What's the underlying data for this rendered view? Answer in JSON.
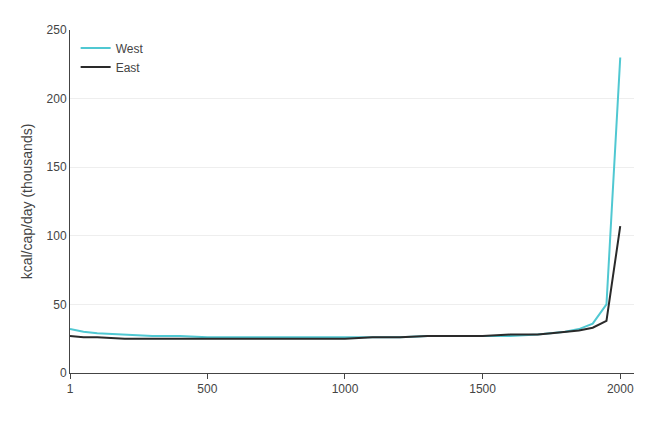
{
  "chart_data": {
    "type": "line",
    "ylabel": "kcal/cap/day (thousands)",
    "x": [
      1,
      50,
      100,
      200,
      300,
      400,
      500,
      600,
      700,
      800,
      900,
      1000,
      1100,
      1200,
      1300,
      1400,
      1500,
      1600,
      1700,
      1750,
      1800,
      1850,
      1900,
      1950,
      2000
    ],
    "series": [
      {
        "name": "West",
        "color": "#50c8d2",
        "values": [
          32,
          30,
          29,
          28,
          27,
          27,
          26,
          26,
          26,
          26,
          26,
          26,
          26,
          26,
          27,
          27,
          27,
          27,
          28,
          29,
          30,
          32,
          36,
          50,
          230
        ]
      },
      {
        "name": "East",
        "color": "#2a2a2a",
        "values": [
          27,
          26,
          26,
          25,
          25,
          25,
          25,
          25,
          25,
          25,
          25,
          25,
          26,
          26,
          27,
          27,
          27,
          28,
          28,
          29,
          30,
          31,
          33,
          38,
          107
        ]
      }
    ],
    "xlim": [
      1,
      2050
    ],
    "ylim": [
      0,
      250
    ],
    "xticks": [
      1,
      500,
      1000,
      1500,
      2000
    ],
    "yticks": [
      0,
      50,
      100,
      150,
      200,
      250
    ],
    "grid": true,
    "legend": "upper left"
  }
}
